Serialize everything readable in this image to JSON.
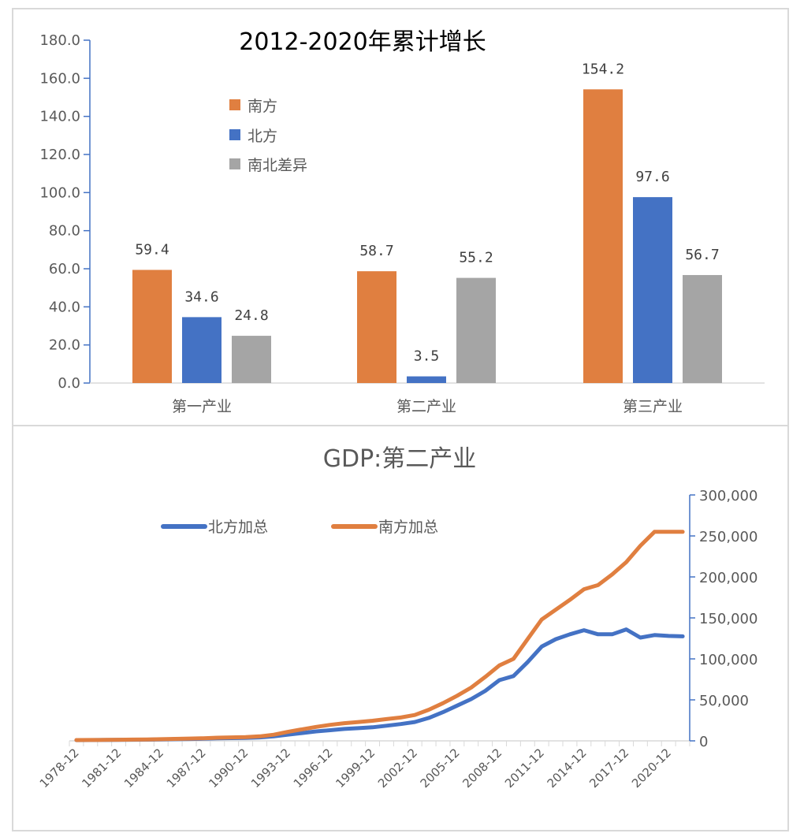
{
  "chart_data": [
    {
      "type": "bar",
      "title": "2012-2020年累计增长",
      "xlabel": "",
      "ylabel": "",
      "categories": [
        "第一产业",
        "第二产业",
        "第三产业"
      ],
      "series": [
        {
          "name": "南方",
          "color": "#E07F40",
          "values": [
            59.4,
            58.7,
            154.2
          ]
        },
        {
          "name": "北方",
          "color": "#4472C4",
          "values": [
            34.6,
            3.5,
            97.6
          ]
        },
        {
          "name": "南北差异",
          "color": "#A5A5A5",
          "values": [
            24.8,
            55.2,
            56.7
          ]
        }
      ],
      "ylim": [
        0,
        180
      ],
      "yticks": [
        "0.0",
        "20.0",
        "40.0",
        "60.0",
        "80.0",
        "100.0",
        "120.0",
        "140.0",
        "160.0",
        "180.0"
      ],
      "grid": false,
      "legend_position": "upper-left-inside",
      "data_labels": true
    },
    {
      "type": "line",
      "title": "GDP:第二产业",
      "xlabel": "",
      "ylabel": "",
      "x": [
        "1978-12",
        "1979-12",
        "1980-12",
        "1981-12",
        "1982-12",
        "1983-12",
        "1984-12",
        "1985-12",
        "1986-12",
        "1987-12",
        "1988-12",
        "1989-12",
        "1990-12",
        "1991-12",
        "1992-12",
        "1993-12",
        "1994-12",
        "1995-12",
        "1996-12",
        "1997-12",
        "1998-12",
        "1999-12",
        "2000-12",
        "2001-12",
        "2002-12",
        "2003-12",
        "2004-12",
        "2005-12",
        "2006-12",
        "2007-12",
        "2008-12",
        "2009-12",
        "2010-12",
        "2011-12",
        "2012-12",
        "2013-12",
        "2014-12",
        "2015-12",
        "2016-12",
        "2017-12",
        "2018-12",
        "2019-12",
        "2020-12",
        "2021-12"
      ],
      "xtick_labels": [
        "1978-12",
        "1981-12",
        "1984-12",
        "1987-12",
        "1990-12",
        "1993-12",
        "1996-12",
        "1999-12",
        "2002-12",
        "2005-12",
        "2008-12",
        "2011-12",
        "2014-12",
        "2017-12",
        "2020-12"
      ],
      "series": [
        {
          "name": "北方加总",
          "color": "#4472C4",
          "values": [
            900,
            1000,
            1100,
            1200,
            1300,
            1450,
            1700,
            2000,
            2300,
            2600,
            3100,
            3400,
            3600,
            4200,
            5500,
            7500,
            9500,
            11500,
            13000,
            14500,
            15500,
            16500,
            18500,
            20500,
            23000,
            28000,
            35000,
            43000,
            51000,
            61000,
            74000,
            79000,
            96000,
            115000,
            124000,
            130000,
            135000,
            130000,
            130000,
            136000,
            126000,
            129000,
            128000,
            127500
          ]
        },
        {
          "name": "南方加总",
          "color": "#E07F40",
          "values": [
            1000,
            1100,
            1200,
            1350,
            1500,
            1700,
            2000,
            2400,
            2800,
            3200,
            3800,
            4200,
            4500,
            5500,
            7500,
            11000,
            14000,
            17000,
            19500,
            21500,
            23000,
            24500,
            26500,
            28500,
            31500,
            38000,
            46000,
            55000,
            65000,
            78000,
            92000,
            100000,
            124000,
            148000,
            160000,
            172000,
            185000,
            190000,
            203000,
            218000,
            238000,
            255000,
            255000,
            255000
          ]
        }
      ],
      "ylim": [
        0,
        300000
      ],
      "yticks": [
        "0",
        "50,000",
        "100,000",
        "150,000",
        "200,000",
        "250,000",
        "300,000"
      ],
      "y_axis_position": "right",
      "grid": false,
      "legend_position": "top-left-inside"
    }
  ],
  "top_chart": {
    "title": "2012-2020年累计增长",
    "legend": [
      {
        "label": "南方",
        "color": "#E07F40"
      },
      {
        "label": "北方",
        "color": "#4472C4"
      },
      {
        "label": "南北差异",
        "color": "#A5A5A5"
      }
    ]
  },
  "bottom_chart": {
    "title": "GDP:第二产业",
    "legend": [
      {
        "label": "北方加总",
        "color": "#4472C4"
      },
      {
        "label": "南方加总",
        "color": "#E07F40"
      }
    ]
  }
}
